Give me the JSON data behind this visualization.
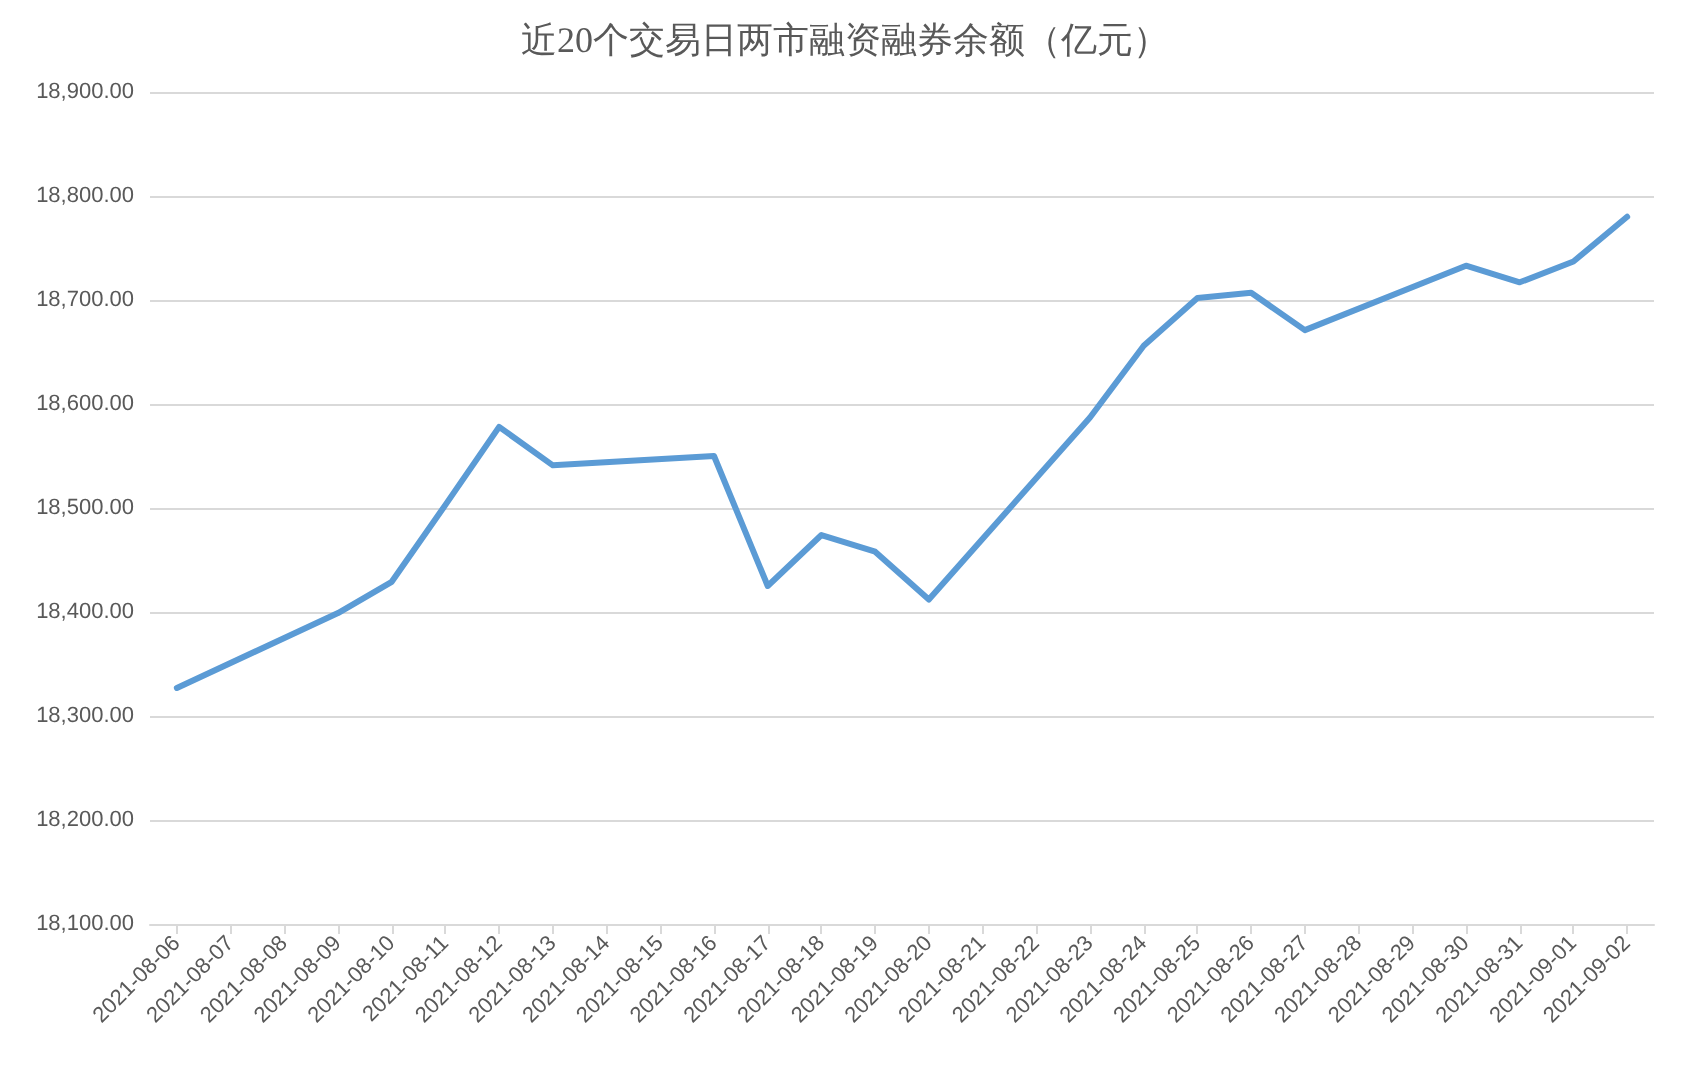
{
  "chart_data": {
    "type": "line",
    "title": "近20个交易日两市融资融券余额（亿元）",
    "x": [
      "2021-08-06",
      "2021-08-09",
      "2021-08-10",
      "2021-08-11",
      "2021-08-12",
      "2021-08-13",
      "2021-08-16",
      "2021-08-17",
      "2021-08-18",
      "2021-08-19",
      "2021-08-20",
      "2021-08-23",
      "2021-08-24",
      "2021-08-25",
      "2021-08-26",
      "2021-08-27",
      "2021-08-30",
      "2021-08-31",
      "2021-09-01",
      "2021-09-02"
    ],
    "series": [
      {
        "color": "#5b9bd5",
        "values": [
          18327,
          18399,
          18429,
          18503,
          18578,
          18541,
          18550,
          18425,
          18474,
          18458,
          18412,
          18587,
          18656,
          18702,
          18707,
          18671,
          18733,
          18717,
          18737,
          18780
        ]
      }
    ],
    "xlim": [
      "2021-08-05T12:00",
      "2021-09-02T12:00"
    ],
    "xticks": [
      "2021-08-06",
      "2021-08-07",
      "2021-08-08",
      "2021-08-09",
      "2021-08-10",
      "2021-08-11",
      "2021-08-12",
      "2021-08-13",
      "2021-08-14",
      "2021-08-15",
      "2021-08-16",
      "2021-08-17",
      "2021-08-18",
      "2021-08-19",
      "2021-08-20",
      "2021-08-21",
      "2021-08-22",
      "2021-08-23",
      "2021-08-24",
      "2021-08-25",
      "2021-08-26",
      "2021-08-27",
      "2021-08-28",
      "2021-08-29",
      "2021-08-30",
      "2021-08-31",
      "2021-09-01",
      "2021-09-02"
    ],
    "ylim": [
      18100,
      18900
    ],
    "yticks": [
      {
        "value": 18100,
        "label": "18,100.00"
      },
      {
        "value": 18200,
        "label": "18,200.00"
      },
      {
        "value": 18300,
        "label": "18,300.00"
      },
      {
        "value": 18400,
        "label": "18,400.00"
      },
      {
        "value": 18500,
        "label": "18,500.00"
      },
      {
        "value": 18600,
        "label": "18,600.00"
      },
      {
        "value": 18700,
        "label": "18,700.00"
      },
      {
        "value": 18800,
        "label": "18,800.00"
      },
      {
        "value": 18900,
        "label": "18,900.00"
      }
    ],
    "grid": "y",
    "marker": "none",
    "line_style": "solid"
  }
}
